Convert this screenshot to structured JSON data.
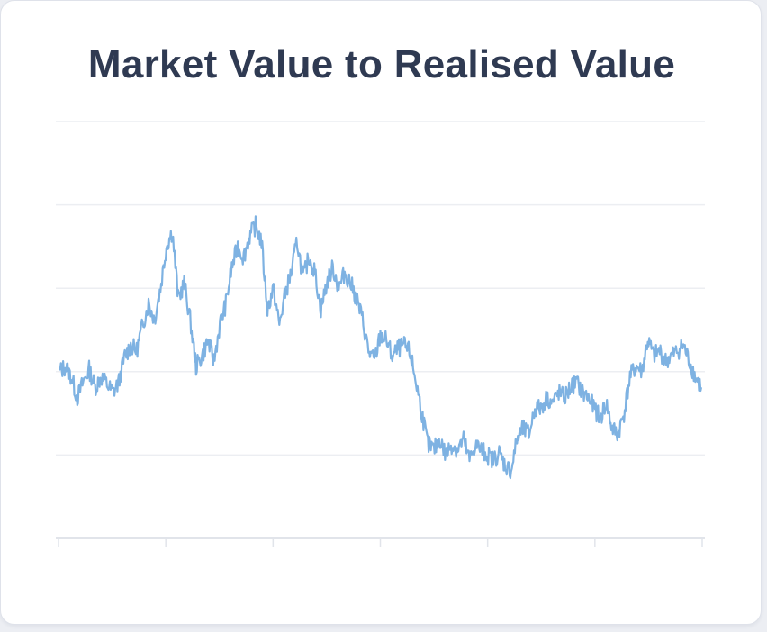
{
  "card": {
    "title": "Market Value to Realised Value"
  },
  "colors": {
    "line": "#7eb2e2",
    "grid": "#eceef2",
    "axis": "#e1e4ea",
    "title": "#2f3a52",
    "card_background": "#ffffff",
    "page_background": "#eceef3"
  },
  "chart_data": {
    "type": "line",
    "title": "Market Value to Realised Value",
    "xlabel": "",
    "ylabel": "",
    "x_tick_labels": [],
    "y_tick_labels": [],
    "y_gridlines": 5,
    "x_ticks": 7,
    "grid": true,
    "legend": "none",
    "ylim": [
      0,
      4
    ],
    "series": [
      {
        "values": [
          1.6,
          1.65,
          1.55,
          1.35,
          1.5,
          1.62,
          1.45,
          1.55,
          1.48,
          1.4,
          1.5,
          1.75,
          1.85,
          1.8,
          2.05,
          2.25,
          2.1,
          2.4,
          2.8,
          2.95,
          2.3,
          2.45,
          2.1,
          1.65,
          1.75,
          1.9,
          1.7,
          2.05,
          2.25,
          2.6,
          2.8,
          2.7,
          2.9,
          3.0,
          2.85,
          2.2,
          2.4,
          2.05,
          2.35,
          2.55,
          2.85,
          2.5,
          2.7,
          2.55,
          2.2,
          2.45,
          2.6,
          2.4,
          2.55,
          2.45,
          2.3,
          2.1,
          1.8,
          1.7,
          1.95,
          1.9,
          1.75,
          1.82,
          1.85,
          1.78,
          1.5,
          1.2,
          0.9,
          0.85,
          0.95,
          0.8,
          0.9,
          0.85,
          0.95,
          0.75,
          0.9,
          0.85,
          0.8,
          0.75,
          0.82,
          0.7,
          0.65,
          0.95,
          1.05,
          1.0,
          1.25,
          1.25,
          1.35,
          1.3,
          1.4,
          1.35,
          1.45,
          1.5,
          1.4,
          1.35,
          1.25,
          1.15,
          1.3,
          1.05,
          1.0,
          1.2,
          1.55,
          1.65,
          1.6,
          1.9,
          1.75,
          1.8,
          1.7,
          1.75,
          1.8,
          1.85,
          1.7,
          1.55,
          1.45
        ]
      }
    ]
  }
}
